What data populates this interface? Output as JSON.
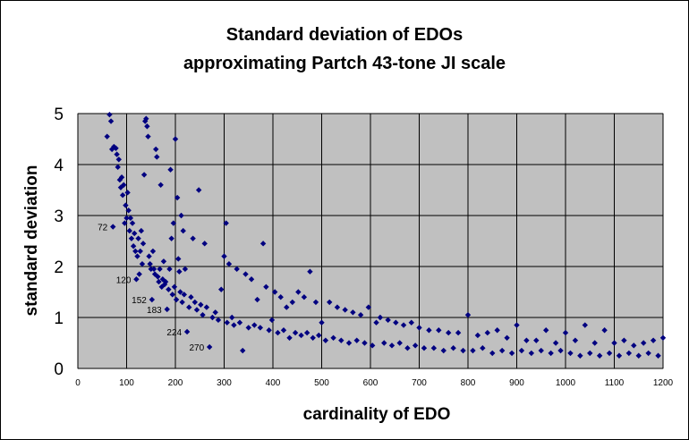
{
  "chart_data": {
    "type": "scatter",
    "title": "Standard deviation of EDOs",
    "subtitle": "approximating Partch 43-tone JI scale",
    "xlabel": "cardinality of EDO",
    "ylabel": "standard deviation",
    "xlim": [
      0,
      1200
    ],
    "ylim": [
      0,
      5
    ],
    "x_ticks": [
      "0",
      "100",
      "200",
      "300",
      "400",
      "500",
      "600",
      "700",
      "800",
      "900",
      "1000",
      "1100",
      "1200"
    ],
    "y_ticks": [
      "0",
      "1",
      "2",
      "3",
      "4",
      "5"
    ],
    "grid": true,
    "legend": "none",
    "colors": {
      "plot_bg": "#c0c0c0",
      "marker": "#000080",
      "grid": "#000000"
    },
    "marker": "diamond",
    "annotations": [
      {
        "text": "72",
        "x": 72,
        "y": 2.78
      },
      {
        "text": "120",
        "x": 120,
        "y": 1.75
      },
      {
        "text": "152",
        "x": 152,
        "y": 1.35
      },
      {
        "text": "183",
        "x": 183,
        "y": 1.16
      },
      {
        "text": "224",
        "x": 224,
        "y": 0.72
      },
      {
        "text": "270",
        "x": 270,
        "y": 0.42
      }
    ],
    "series": [
      {
        "points": [
          [
            60,
            4.55
          ],
          [
            65,
            4.98
          ],
          [
            68,
            4.85
          ],
          [
            70,
            4.3
          ],
          [
            72,
            2.78
          ],
          [
            74,
            4.35
          ],
          [
            78,
            4.32
          ],
          [
            80,
            4.2
          ],
          [
            82,
            3.95
          ],
          [
            84,
            4.1
          ],
          [
            86,
            3.7
          ],
          [
            88,
            3.55
          ],
          [
            90,
            3.75
          ],
          [
            92,
            3.4
          ],
          [
            94,
            3.6
          ],
          [
            96,
            2.85
          ],
          [
            98,
            3.2
          ],
          [
            100,
            2.95
          ],
          [
            102,
            3.45
          ],
          [
            104,
            3.1
          ],
          [
            106,
            2.7
          ],
          [
            108,
            2.95
          ],
          [
            110,
            2.55
          ],
          [
            112,
            2.85
          ],
          [
            114,
            2.4
          ],
          [
            116,
            2.65
          ],
          [
            118,
            2.3
          ],
          [
            120,
            1.75
          ],
          [
            122,
            2.2
          ],
          [
            124,
            2.55
          ],
          [
            126,
            1.85
          ],
          [
            128,
            2.3
          ],
          [
            130,
            2.7
          ],
          [
            132,
            2.05
          ],
          [
            134,
            2.45
          ],
          [
            136,
            3.8
          ],
          [
            138,
            4.85
          ],
          [
            140,
            4.9
          ],
          [
            142,
            4.75
          ],
          [
            144,
            4.55
          ],
          [
            146,
            2.2
          ],
          [
            148,
            2.05
          ],
          [
            150,
            1.95
          ],
          [
            152,
            1.35
          ],
          [
            154,
            2.3
          ],
          [
            156,
            1.95
          ],
          [
            158,
            1.85
          ],
          [
            160,
            4.3
          ],
          [
            162,
            4.15
          ],
          [
            164,
            1.8
          ],
          [
            166,
            1.7
          ],
          [
            168,
            1.95
          ],
          [
            170,
            3.6
          ],
          [
            172,
            1.6
          ],
          [
            174,
            1.75
          ],
          [
            176,
            2.1
          ],
          [
            178,
            1.65
          ],
          [
            180,
            1.7
          ],
          [
            183,
            1.16
          ],
          [
            186,
            1.55
          ],
          [
            188,
            1.95
          ],
          [
            190,
            3.9
          ],
          [
            192,
            2.55
          ],
          [
            194,
            1.45
          ],
          [
            196,
            2.85
          ],
          [
            198,
            1.6
          ],
          [
            200,
            4.5
          ],
          [
            202,
            1.35
          ],
          [
            204,
            3.35
          ],
          [
            206,
            2.15
          ],
          [
            208,
            1.9
          ],
          [
            210,
            1.5
          ],
          [
            212,
            3.0
          ],
          [
            214,
            1.3
          ],
          [
            216,
            2.7
          ],
          [
            218,
            1.45
          ],
          [
            220,
            1.95
          ],
          [
            224,
            0.72
          ],
          [
            228,
            1.2
          ],
          [
            232,
            1.4
          ],
          [
            236,
            2.55
          ],
          [
            240,
            1.3
          ],
          [
            244,
            1.15
          ],
          [
            248,
            3.5
          ],
          [
            252,
            1.25
          ],
          [
            256,
            1.05
          ],
          [
            260,
            2.45
          ],
          [
            264,
            1.2
          ],
          [
            270,
            0.42
          ],
          [
            276,
            1.0
          ],
          [
            282,
            1.1
          ],
          [
            288,
            0.95
          ],
          [
            294,
            1.55
          ],
          [
            300,
            2.2
          ],
          [
            304,
            2.85
          ],
          [
            306,
            0.9
          ],
          [
            310,
            2.05
          ],
          [
            316,
            1.0
          ],
          [
            320,
            0.85
          ],
          [
            326,
            1.95
          ],
          [
            332,
            0.9
          ],
          [
            338,
            0.35
          ],
          [
            344,
            1.85
          ],
          [
            350,
            0.8
          ],
          [
            356,
            1.75
          ],
          [
            362,
            0.85
          ],
          [
            368,
            1.35
          ],
          [
            374,
            0.8
          ],
          [
            380,
            2.45
          ],
          [
            386,
            1.6
          ],
          [
            392,
            0.75
          ],
          [
            398,
            0.95
          ],
          [
            404,
            1.5
          ],
          [
            410,
            0.7
          ],
          [
            416,
            1.4
          ],
          [
            422,
            0.75
          ],
          [
            428,
            1.2
          ],
          [
            434,
            0.6
          ],
          [
            440,
            1.3
          ],
          [
            446,
            0.7
          ],
          [
            452,
            1.5
          ],
          [
            458,
            0.65
          ],
          [
            464,
            1.4
          ],
          [
            470,
            0.7
          ],
          [
            476,
            1.9
          ],
          [
            482,
            0.6
          ],
          [
            488,
            1.3
          ],
          [
            494,
            0.65
          ],
          [
            500,
            0.9
          ],
          [
            508,
            0.55
          ],
          [
            516,
            1.3
          ],
          [
            524,
            0.6
          ],
          [
            532,
            1.2
          ],
          [
            540,
            0.55
          ],
          [
            548,
            1.15
          ],
          [
            556,
            0.5
          ],
          [
            564,
            1.1
          ],
          [
            572,
            0.55
          ],
          [
            580,
            1.05
          ],
          [
            588,
            0.5
          ],
          [
            596,
            1.2
          ],
          [
            604,
            0.45
          ],
          [
            612,
            0.9
          ],
          [
            620,
            1.0
          ],
          [
            628,
            0.5
          ],
          [
            636,
            0.95
          ],
          [
            644,
            0.45
          ],
          [
            652,
            0.9
          ],
          [
            660,
            0.5
          ],
          [
            668,
            0.85
          ],
          [
            676,
            0.4
          ],
          [
            684,
            0.9
          ],
          [
            692,
            0.45
          ],
          [
            700,
            0.8
          ],
          [
            710,
            0.4
          ],
          [
            720,
            0.75
          ],
          [
            730,
            0.4
          ],
          [
            740,
            0.75
          ],
          [
            750,
            0.35
          ],
          [
            760,
            0.7
          ],
          [
            770,
            0.4
          ],
          [
            780,
            0.7
          ],
          [
            790,
            0.35
          ],
          [
            800,
            1.05
          ],
          [
            810,
            0.35
          ],
          [
            820,
            0.65
          ],
          [
            830,
            0.4
          ],
          [
            840,
            0.7
          ],
          [
            850,
            0.3
          ],
          [
            860,
            0.75
          ],
          [
            870,
            0.35
          ],
          [
            880,
            0.6
          ],
          [
            890,
            0.3
          ],
          [
            900,
            0.85
          ],
          [
            910,
            0.35
          ],
          [
            920,
            0.55
          ],
          [
            930,
            0.3
          ],
          [
            940,
            0.55
          ],
          [
            950,
            0.35
          ],
          [
            960,
            0.75
          ],
          [
            970,
            0.3
          ],
          [
            980,
            0.5
          ],
          [
            990,
            0.35
          ],
          [
            1000,
            0.7
          ],
          [
            1010,
            0.3
          ],
          [
            1020,
            0.55
          ],
          [
            1030,
            0.25
          ],
          [
            1040,
            0.85
          ],
          [
            1050,
            0.3
          ],
          [
            1060,
            0.5
          ],
          [
            1070,
            0.25
          ],
          [
            1080,
            0.75
          ],
          [
            1090,
            0.3
          ],
          [
            1100,
            0.5
          ],
          [
            1110,
            0.25
          ],
          [
            1120,
            0.55
          ],
          [
            1130,
            0.3
          ],
          [
            1140,
            0.45
          ],
          [
            1150,
            0.25
          ],
          [
            1160,
            0.5
          ],
          [
            1170,
            0.3
          ],
          [
            1180,
            0.55
          ],
          [
            1190,
            0.25
          ],
          [
            1200,
            0.6
          ]
        ]
      }
    ]
  }
}
